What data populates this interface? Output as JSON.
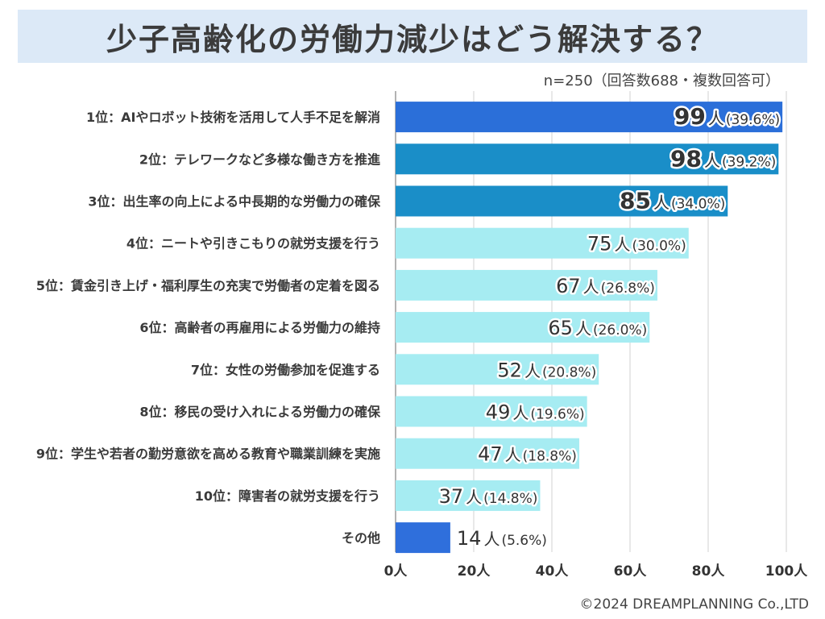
{
  "header": {
    "title": "少子高齢化の労働力減少はどう解決する？",
    "sample_note": "n=250（回答数688・複数回答可）"
  },
  "footer": {
    "copyright": "©2024 DREAMPLANNING Co.,LTD"
  },
  "chart_data": {
    "type": "bar",
    "orientation": "horizontal",
    "title": "少子高齢化の労働力減少はどう解決する？",
    "xlabel": "",
    "ylabel": "",
    "unit": "人",
    "xlim": [
      0,
      100
    ],
    "x_ticks": [
      0,
      20,
      40,
      60,
      80,
      100
    ],
    "x_tick_labels": [
      "0人",
      "20人",
      "40人",
      "60人",
      "80人",
      "100人"
    ],
    "grid": true,
    "categories": [
      "1位：AIやロボット技術を活用して人手不足を解消",
      "2位：テレワークなど多様な働き方を推進",
      "3位：出生率の向上による中長期的な労働力の確保",
      "4位：ニートや引きこもりの就労支援を行う",
      "5位：賃金引き上げ・福利厚生の充実で労働者の定着を図る",
      "6位：高齢者の再雇用による労働力の維持",
      "7位：女性の労働参加を促進する",
      "8位：移民の受け入れによる労働力の確保",
      "9位：学生や若者の勤労意欲を高める教育や職業訓練を実施",
      "10位：障害者の就労支援を行う",
      "その他"
    ],
    "values": [
      99,
      98,
      85,
      75,
      67,
      65,
      52,
      49,
      47,
      37,
      14
    ],
    "percent_labels": [
      "(39.6%)",
      "(39.2%)",
      "(34.0%)",
      "(30.0%)",
      "(26.8%)",
      "(26.0%)",
      "(20.8%)",
      "(19.6%)",
      "(18.8%)",
      "(14.8%)",
      "(5.6%)"
    ],
    "bar_colors": [
      "#2b6fd9",
      "#1a8ec8",
      "#1a8ec8",
      "#a6ecf2",
      "#a6ecf2",
      "#a6ecf2",
      "#a6ecf2",
      "#a6ecf2",
      "#a6ecf2",
      "#a6ecf2",
      "#2f6fdc"
    ]
  }
}
